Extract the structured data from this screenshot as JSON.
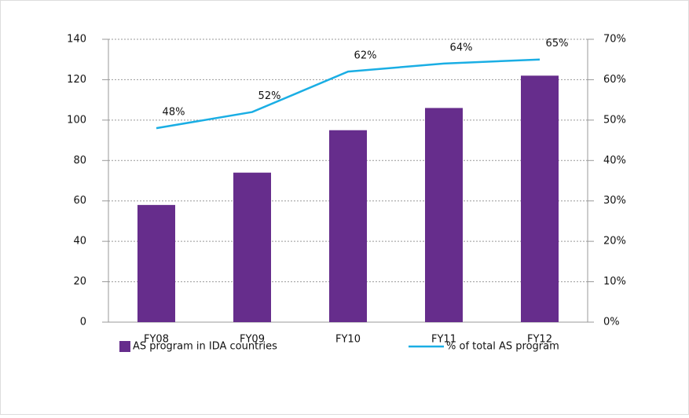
{
  "chart_data": {
    "type": "bar",
    "categories": [
      "FY08",
      "FY09",
      "FY10",
      "FY11",
      "FY12"
    ],
    "series": [
      {
        "name": "AS program in IDA countries",
        "type": "bar",
        "color": "#662d8c",
        "values": [
          58,
          74,
          95,
          106,
          122
        ]
      },
      {
        "name": "% of total AS program",
        "type": "line",
        "axis": "y2",
        "color": "#1aaee4",
        "values": [
          48,
          52,
          62,
          64,
          65
        ],
        "value_labels": [
          "48%",
          "52%",
          "62%",
          "64%",
          "65%"
        ]
      }
    ],
    "ylim": [
      0,
      140
    ],
    "yticks": [
      0,
      20,
      40,
      60,
      80,
      100,
      120,
      140
    ],
    "y2lim": [
      0,
      70
    ],
    "y2ticks": [
      {
        "value": 0,
        "label": "0%"
      },
      {
        "value": 10,
        "label": "10%"
      },
      {
        "value": 20,
        "label": "20%"
      },
      {
        "value": 30,
        "label": "30%"
      },
      {
        "value": 40,
        "label": "40%"
      },
      {
        "value": 50,
        "label": "50%"
      },
      {
        "value": 60,
        "label": "60%"
      },
      {
        "value": 70,
        "label": "70%"
      }
    ],
    "grid": true,
    "legend": "bottom"
  }
}
